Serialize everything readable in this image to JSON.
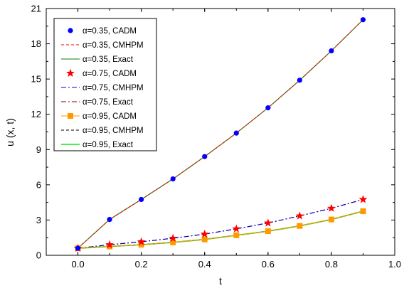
{
  "chart_data": {
    "type": "line",
    "xlabel": "t",
    "ylabel": "u (x, t)",
    "xlim": [
      -0.1,
      1.0
    ],
    "ylim": [
      0,
      21
    ],
    "xticks": [
      "0.0",
      "0.2",
      "0.4",
      "0.6",
      "0.8",
      "1.0"
    ],
    "yticks": [
      "0",
      "3",
      "6",
      "9",
      "12",
      "15",
      "18",
      "21"
    ],
    "legend_position": "top-left",
    "grid": false,
    "series": [
      {
        "name": "α=0.35, CADM",
        "style": "marker",
        "marker": "circle",
        "color": "#0000ff",
        "x": [
          0.0,
          0.1,
          0.2,
          0.3,
          0.4,
          0.5,
          0.6,
          0.7,
          0.8,
          0.9
        ],
        "y": [
          0.6,
          3.05,
          4.75,
          6.5,
          8.4,
          10.4,
          12.55,
          14.9,
          17.4,
          20.05
        ]
      },
      {
        "name": "α=0.35, CMHPM",
        "style": "line",
        "dash": "dash",
        "color": "#ff0000",
        "x": [
          0.0,
          0.1,
          0.2,
          0.3,
          0.4,
          0.5,
          0.6,
          0.7,
          0.8,
          0.9
        ],
        "y": [
          0.6,
          3.05,
          4.75,
          6.5,
          8.4,
          10.4,
          12.55,
          14.9,
          17.4,
          20.05
        ]
      },
      {
        "name": "α=0.35, Exact",
        "style": "line",
        "dash": "solid",
        "color": "#008000",
        "x": [
          0.0,
          0.1,
          0.2,
          0.3,
          0.4,
          0.5,
          0.6,
          0.7,
          0.8,
          0.9
        ],
        "y": [
          0.6,
          3.05,
          4.75,
          6.5,
          8.4,
          10.4,
          12.55,
          14.9,
          17.4,
          20.05
        ]
      },
      {
        "name": "α=0.75, CADM",
        "style": "marker",
        "marker": "star",
        "color": "#ff0000",
        "x": [
          0.0,
          0.1,
          0.2,
          0.3,
          0.4,
          0.5,
          0.6,
          0.7,
          0.8,
          0.9
        ],
        "y": [
          0.6,
          0.9,
          1.15,
          1.45,
          1.8,
          2.25,
          2.75,
          3.35,
          4.0,
          4.75
        ]
      },
      {
        "name": "α=0.75, CMHPM",
        "style": "line",
        "dash": "dashdot",
        "color": "#0000cc",
        "x": [
          0.0,
          0.1,
          0.2,
          0.3,
          0.4,
          0.5,
          0.6,
          0.7,
          0.8,
          0.9
        ],
        "y": [
          0.6,
          0.9,
          1.15,
          1.45,
          1.8,
          2.25,
          2.75,
          3.35,
          4.0,
          4.75
        ]
      },
      {
        "name": "α=0.75, Exact",
        "style": "line",
        "dash": "dashdot",
        "color": "#800000",
        "x": [
          0.0,
          0.1,
          0.2,
          0.3,
          0.4,
          0.5,
          0.6,
          0.7,
          0.8,
          0.9
        ],
        "y": [
          0.6,
          0.9,
          1.15,
          1.45,
          1.8,
          2.25,
          2.75,
          3.35,
          4.0,
          4.75
        ]
      },
      {
        "name": "α=0.95, CADM",
        "style": "line+marker",
        "marker": "square",
        "dash": "solid",
        "color": "#ff9900",
        "x": [
          0.0,
          0.1,
          0.2,
          0.3,
          0.4,
          0.5,
          0.6,
          0.7,
          0.8,
          0.9
        ],
        "y": [
          0.6,
          0.75,
          0.9,
          1.1,
          1.35,
          1.7,
          2.05,
          2.5,
          3.05,
          3.75
        ]
      },
      {
        "name": "α=0.95, CMHPM",
        "style": "line",
        "dash": "dash",
        "color": "#000000",
        "x": [
          0.0,
          0.1,
          0.2,
          0.3,
          0.4,
          0.5,
          0.6,
          0.7,
          0.8,
          0.9
        ],
        "y": [
          0.6,
          0.75,
          0.9,
          1.1,
          1.35,
          1.7,
          2.05,
          2.5,
          3.05,
          3.75
        ]
      },
      {
        "name": "α=0.95, Exact",
        "style": "line",
        "dash": "solid",
        "color": "#33ee33",
        "x": [
          0.0,
          0.1,
          0.2,
          0.3,
          0.4,
          0.5,
          0.6,
          0.7,
          0.8,
          0.9
        ],
        "y": [
          0.6,
          0.75,
          0.9,
          1.1,
          1.35,
          1.7,
          2.05,
          2.5,
          3.05,
          3.75
        ]
      }
    ]
  }
}
